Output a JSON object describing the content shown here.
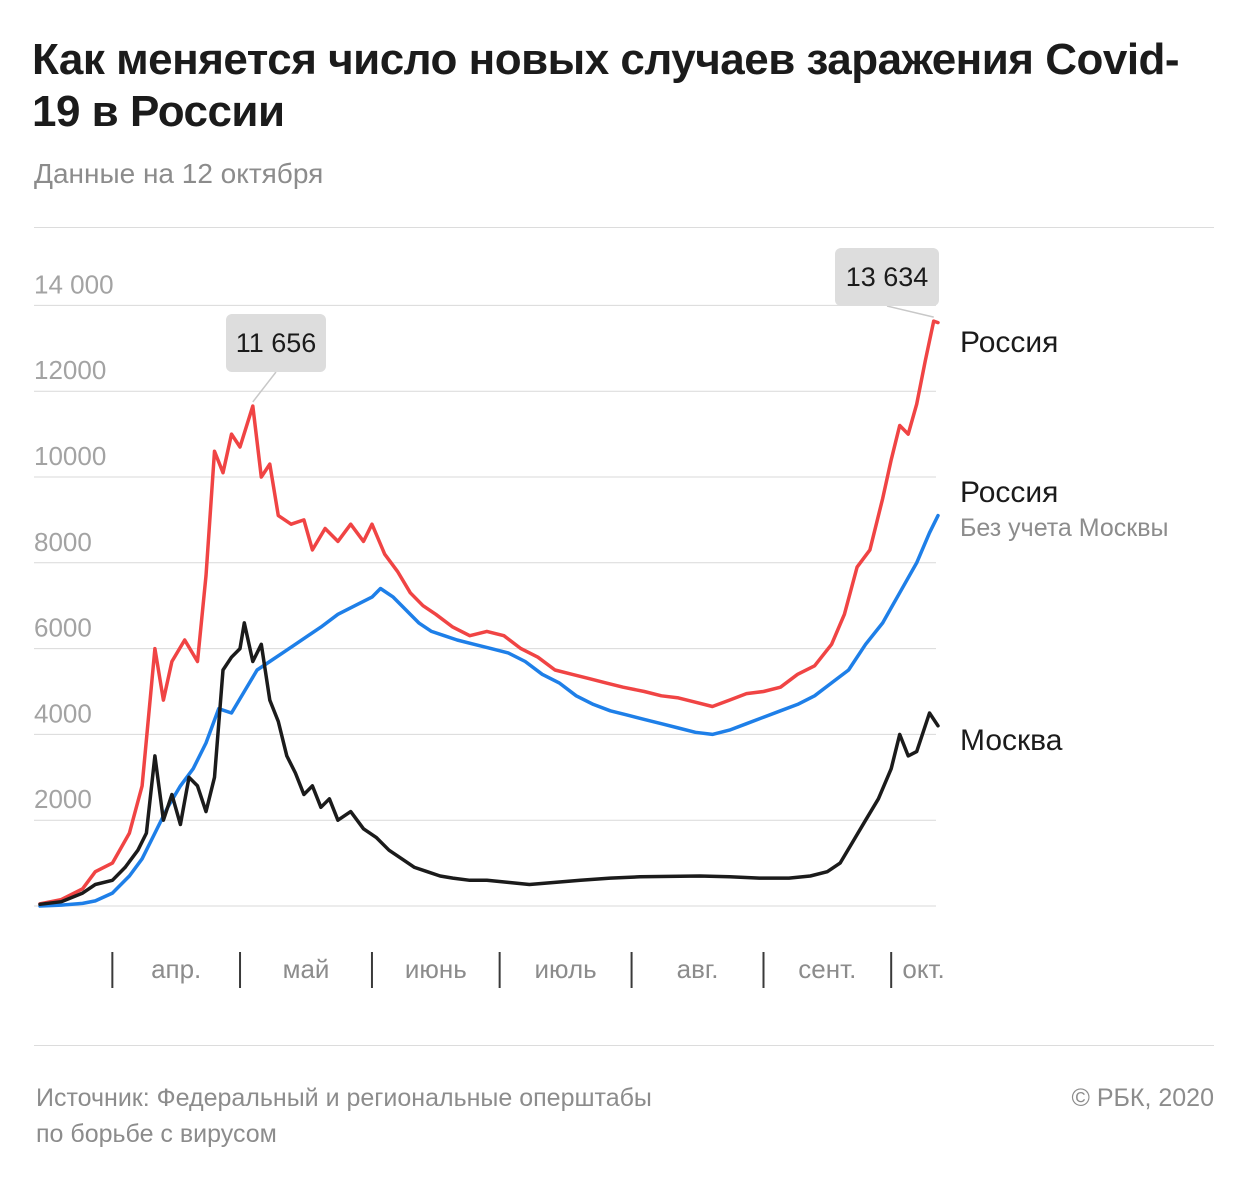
{
  "header": {
    "title": "Как меняется число новых случаев заражения Covid-19 в России",
    "subtitle": "Данные на 12 октября"
  },
  "footer": {
    "source_line1": "Источник: Федеральный и региональные оперштабы",
    "source_line2": "по борьбе с вирусом",
    "copyright": "© РБК, 2020"
  },
  "chart_data": {
    "type": "line",
    "x_start": "2020-03-15",
    "x_end": "2020-10-12",
    "y_range": [
      0,
      14000
    ],
    "y_ticks": [
      "2000",
      "4000",
      "6000",
      "8000",
      "10000",
      "12000",
      "14 000"
    ],
    "y_tick_values": [
      2000,
      4000,
      6000,
      8000,
      10000,
      12000,
      14000
    ],
    "month_labels": [
      "апр.",
      "май",
      "июнь",
      "июль",
      "авг.",
      "сент.",
      "окт."
    ],
    "month_starts": [
      "2020-04-01",
      "2020-05-01",
      "2020-06-01",
      "2020-07-01",
      "2020-08-01",
      "2020-09-01",
      "2020-10-01"
    ],
    "grid": true,
    "series": [
      {
        "name": "Россия",
        "color": "#f04444",
        "points": [
          [
            "2020-03-15",
            50
          ],
          [
            "2020-03-20",
            150
          ],
          [
            "2020-03-25",
            400
          ],
          [
            "2020-03-28",
            800
          ],
          [
            "2020-04-01",
            1000
          ],
          [
            "2020-04-05",
            1700
          ],
          [
            "2020-04-08",
            2800
          ],
          [
            "2020-04-11",
            6000
          ],
          [
            "2020-04-13",
            4800
          ],
          [
            "2020-04-15",
            5700
          ],
          [
            "2020-04-18",
            6200
          ],
          [
            "2020-04-21",
            5700
          ],
          [
            "2020-04-23",
            7700
          ],
          [
            "2020-04-25",
            10600
          ],
          [
            "2020-04-27",
            10100
          ],
          [
            "2020-04-29",
            11000
          ],
          [
            "2020-05-01",
            10700
          ],
          [
            "2020-05-04",
            11656
          ],
          [
            "2020-05-06",
            10000
          ],
          [
            "2020-05-08",
            10300
          ],
          [
            "2020-05-10",
            9100
          ],
          [
            "2020-05-13",
            8900
          ],
          [
            "2020-05-16",
            9000
          ],
          [
            "2020-05-18",
            8300
          ],
          [
            "2020-05-21",
            8800
          ],
          [
            "2020-05-24",
            8500
          ],
          [
            "2020-05-27",
            8900
          ],
          [
            "2020-05-30",
            8500
          ],
          [
            "2020-06-01",
            8900
          ],
          [
            "2020-06-04",
            8200
          ],
          [
            "2020-06-07",
            7800
          ],
          [
            "2020-06-10",
            7300
          ],
          [
            "2020-06-13",
            7000
          ],
          [
            "2020-06-16",
            6800
          ],
          [
            "2020-06-20",
            6500
          ],
          [
            "2020-06-24",
            6300
          ],
          [
            "2020-06-28",
            6400
          ],
          [
            "2020-07-02",
            6300
          ],
          [
            "2020-07-06",
            6000
          ],
          [
            "2020-07-10",
            5800
          ],
          [
            "2020-07-14",
            5500
          ],
          [
            "2020-07-18",
            5400
          ],
          [
            "2020-07-22",
            5300
          ],
          [
            "2020-07-26",
            5200
          ],
          [
            "2020-07-30",
            5100
          ],
          [
            "2020-08-04",
            5000
          ],
          [
            "2020-08-08",
            4900
          ],
          [
            "2020-08-12",
            4850
          ],
          [
            "2020-08-16",
            4750
          ],
          [
            "2020-08-20",
            4650
          ],
          [
            "2020-08-24",
            4800
          ],
          [
            "2020-08-28",
            4950
          ],
          [
            "2020-09-01",
            5000
          ],
          [
            "2020-09-05",
            5100
          ],
          [
            "2020-09-09",
            5400
          ],
          [
            "2020-09-13",
            5600
          ],
          [
            "2020-09-17",
            6100
          ],
          [
            "2020-09-20",
            6800
          ],
          [
            "2020-09-23",
            7900
          ],
          [
            "2020-09-26",
            8300
          ],
          [
            "2020-09-29",
            9500
          ],
          [
            "2020-10-01",
            10400
          ],
          [
            "2020-10-03",
            11200
          ],
          [
            "2020-10-05",
            11000
          ],
          [
            "2020-10-07",
            11700
          ],
          [
            "2020-10-09",
            12700
          ],
          [
            "2020-10-11",
            13634
          ],
          [
            "2020-10-12",
            13600
          ]
        ]
      },
      {
        "name": "Россия",
        "sublabel": "Без учета Москвы",
        "color": "#1e7fe8",
        "points": [
          [
            "2020-03-15",
            0
          ],
          [
            "2020-03-20",
            20
          ],
          [
            "2020-03-25",
            60
          ],
          [
            "2020-03-28",
            120
          ],
          [
            "2020-04-01",
            300
          ],
          [
            "2020-04-05",
            700
          ],
          [
            "2020-04-08",
            1100
          ],
          [
            "2020-04-11",
            1700
          ],
          [
            "2020-04-14",
            2300
          ],
          [
            "2020-04-17",
            2800
          ],
          [
            "2020-04-20",
            3200
          ],
          [
            "2020-04-23",
            3800
          ],
          [
            "2020-04-26",
            4600
          ],
          [
            "2020-04-29",
            4500
          ],
          [
            "2020-05-02",
            5000
          ],
          [
            "2020-05-05",
            5500
          ],
          [
            "2020-05-08",
            5700
          ],
          [
            "2020-05-11",
            5900
          ],
          [
            "2020-05-14",
            6100
          ],
          [
            "2020-05-17",
            6300
          ],
          [
            "2020-05-20",
            6500
          ],
          [
            "2020-05-24",
            6800
          ],
          [
            "2020-05-28",
            7000
          ],
          [
            "2020-06-01",
            7200
          ],
          [
            "2020-06-03",
            7400
          ],
          [
            "2020-06-06",
            7200
          ],
          [
            "2020-06-09",
            6900
          ],
          [
            "2020-06-12",
            6600
          ],
          [
            "2020-06-15",
            6400
          ],
          [
            "2020-06-18",
            6300
          ],
          [
            "2020-06-21",
            6200
          ],
          [
            "2020-06-25",
            6100
          ],
          [
            "2020-06-29",
            6000
          ],
          [
            "2020-07-03",
            5900
          ],
          [
            "2020-07-07",
            5700
          ],
          [
            "2020-07-11",
            5400
          ],
          [
            "2020-07-15",
            5200
          ],
          [
            "2020-07-19",
            4900
          ],
          [
            "2020-07-23",
            4700
          ],
          [
            "2020-07-27",
            4550
          ],
          [
            "2020-07-31",
            4450
          ],
          [
            "2020-08-04",
            4350
          ],
          [
            "2020-08-08",
            4250
          ],
          [
            "2020-08-12",
            4150
          ],
          [
            "2020-08-16",
            4050
          ],
          [
            "2020-08-20",
            4000
          ],
          [
            "2020-08-24",
            4100
          ],
          [
            "2020-08-28",
            4250
          ],
          [
            "2020-09-01",
            4400
          ],
          [
            "2020-09-05",
            4550
          ],
          [
            "2020-09-09",
            4700
          ],
          [
            "2020-09-13",
            4900
          ],
          [
            "2020-09-17",
            5200
          ],
          [
            "2020-09-21",
            5500
          ],
          [
            "2020-09-25",
            6100
          ],
          [
            "2020-09-29",
            6600
          ],
          [
            "2020-10-03",
            7300
          ],
          [
            "2020-10-07",
            8000
          ],
          [
            "2020-10-10",
            8700
          ],
          [
            "2020-10-12",
            9100
          ]
        ]
      },
      {
        "name": "Москва",
        "color": "#1b1b1b",
        "points": [
          [
            "2020-03-15",
            40
          ],
          [
            "2020-03-20",
            100
          ],
          [
            "2020-03-25",
            300
          ],
          [
            "2020-03-28",
            500
          ],
          [
            "2020-04-01",
            600
          ],
          [
            "2020-04-04",
            900
          ],
          [
            "2020-04-07",
            1300
          ],
          [
            "2020-04-09",
            1700
          ],
          [
            "2020-04-11",
            3500
          ],
          [
            "2020-04-13",
            2000
          ],
          [
            "2020-04-15",
            2600
          ],
          [
            "2020-04-17",
            1900
          ],
          [
            "2020-04-19",
            3000
          ],
          [
            "2020-04-21",
            2800
          ],
          [
            "2020-04-23",
            2200
          ],
          [
            "2020-04-25",
            3000
          ],
          [
            "2020-04-27",
            5500
          ],
          [
            "2020-04-29",
            5800
          ],
          [
            "2020-05-01",
            6000
          ],
          [
            "2020-05-02",
            6600
          ],
          [
            "2020-05-04",
            5700
          ],
          [
            "2020-05-06",
            6100
          ],
          [
            "2020-05-08",
            4800
          ],
          [
            "2020-05-10",
            4300
          ],
          [
            "2020-05-12",
            3500
          ],
          [
            "2020-05-14",
            3100
          ],
          [
            "2020-05-16",
            2600
          ],
          [
            "2020-05-18",
            2800
          ],
          [
            "2020-05-20",
            2300
          ],
          [
            "2020-05-22",
            2500
          ],
          [
            "2020-05-24",
            2000
          ],
          [
            "2020-05-27",
            2200
          ],
          [
            "2020-05-30",
            1800
          ],
          [
            "2020-06-02",
            1600
          ],
          [
            "2020-06-05",
            1300
          ],
          [
            "2020-06-08",
            1100
          ],
          [
            "2020-06-11",
            900
          ],
          [
            "2020-06-14",
            800
          ],
          [
            "2020-06-17",
            700
          ],
          [
            "2020-06-20",
            650
          ],
          [
            "2020-06-24",
            600
          ],
          [
            "2020-06-28",
            600
          ],
          [
            "2020-07-03",
            550
          ],
          [
            "2020-07-08",
            500
          ],
          [
            "2020-07-14",
            550
          ],
          [
            "2020-07-20",
            600
          ],
          [
            "2020-07-27",
            650
          ],
          [
            "2020-08-03",
            680
          ],
          [
            "2020-08-10",
            690
          ],
          [
            "2020-08-17",
            700
          ],
          [
            "2020-08-24",
            680
          ],
          [
            "2020-08-31",
            650
          ],
          [
            "2020-09-07",
            650
          ],
          [
            "2020-09-12",
            700
          ],
          [
            "2020-09-16",
            800
          ],
          [
            "2020-09-19",
            1000
          ],
          [
            "2020-09-22",
            1500
          ],
          [
            "2020-09-25",
            2000
          ],
          [
            "2020-09-28",
            2500
          ],
          [
            "2020-10-01",
            3200
          ],
          [
            "2020-10-03",
            4000
          ],
          [
            "2020-10-05",
            3500
          ],
          [
            "2020-10-07",
            3600
          ],
          [
            "2020-10-10",
            4500
          ],
          [
            "2020-10-12",
            4200
          ]
        ]
      }
    ],
    "annotations": [
      {
        "label": "11 656",
        "x": "2020-05-04",
        "value": 11656
      },
      {
        "label": "13 634",
        "x": "2020-10-11",
        "value": 13634
      }
    ]
  }
}
